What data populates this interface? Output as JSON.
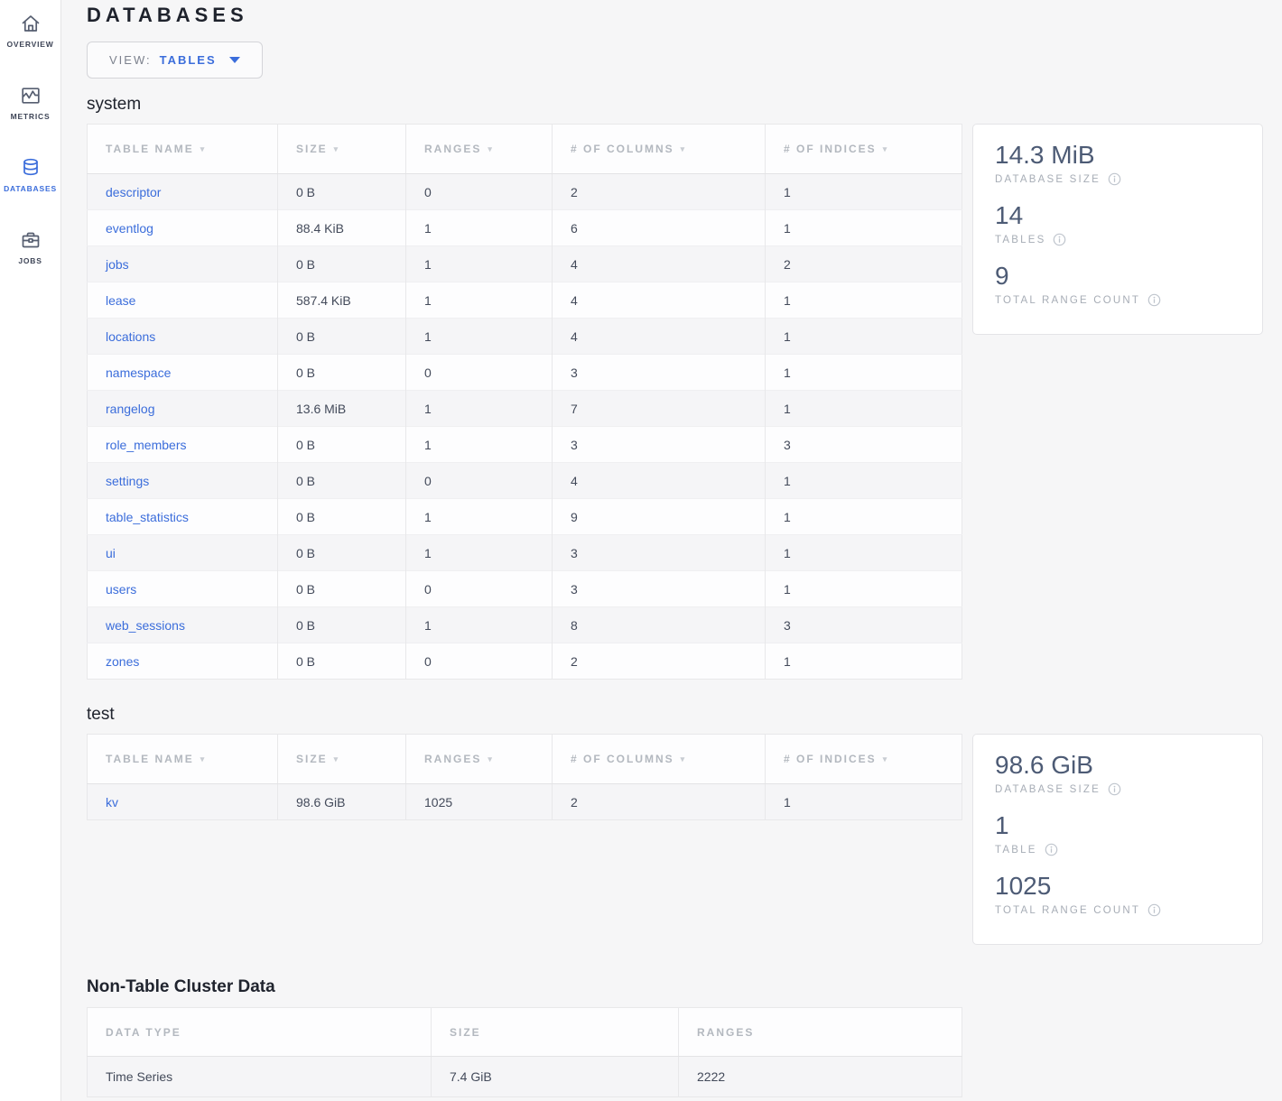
{
  "colors": {
    "accent": "#3b6ddb",
    "stat_value": "#4d5b75",
    "title": "#1e222c"
  },
  "sidebar": {
    "items": [
      {
        "label": "OVERVIEW",
        "icon": "home-icon",
        "active": false
      },
      {
        "label": "METRICS",
        "icon": "metrics-icon",
        "active": false
      },
      {
        "label": "DATABASES",
        "icon": "databases-icon",
        "active": true
      },
      {
        "label": "JOBS",
        "icon": "jobs-icon",
        "active": false
      }
    ]
  },
  "header": {
    "title": "DATABASES"
  },
  "view_selector": {
    "prefix": "VIEW:",
    "value": "TABLES"
  },
  "databases": [
    {
      "name": "system",
      "columns": [
        "TABLE NAME",
        "SIZE",
        "RANGES",
        "# OF COLUMNS",
        "# OF INDICES"
      ],
      "rows": [
        [
          "descriptor",
          "0 B",
          "0",
          "2",
          "1"
        ],
        [
          "eventlog",
          "88.4 KiB",
          "1",
          "6",
          "1"
        ],
        [
          "jobs",
          "0 B",
          "1",
          "4",
          "2"
        ],
        [
          "lease",
          "587.4 KiB",
          "1",
          "4",
          "1"
        ],
        [
          "locations",
          "0 B",
          "1",
          "4",
          "1"
        ],
        [
          "namespace",
          "0 B",
          "0",
          "3",
          "1"
        ],
        [
          "rangelog",
          "13.6 MiB",
          "1",
          "7",
          "1"
        ],
        [
          "role_members",
          "0 B",
          "1",
          "3",
          "3"
        ],
        [
          "settings",
          "0 B",
          "0",
          "4",
          "1"
        ],
        [
          "table_statistics",
          "0 B",
          "1",
          "9",
          "1"
        ],
        [
          "ui",
          "0 B",
          "1",
          "3",
          "1"
        ],
        [
          "users",
          "0 B",
          "0",
          "3",
          "1"
        ],
        [
          "web_sessions",
          "0 B",
          "1",
          "8",
          "3"
        ],
        [
          "zones",
          "0 B",
          "0",
          "2",
          "1"
        ]
      ],
      "summary": [
        {
          "value": "14.3 MiB",
          "label": "DATABASE SIZE"
        },
        {
          "value": "14",
          "label": "TABLES"
        },
        {
          "value": "9",
          "label": "TOTAL RANGE COUNT"
        }
      ]
    },
    {
      "name": "test",
      "columns": [
        "TABLE NAME",
        "SIZE",
        "RANGES",
        "# OF COLUMNS",
        "# OF INDICES"
      ],
      "rows": [
        [
          "kv",
          "98.6 GiB",
          "1025",
          "2",
          "1"
        ]
      ],
      "summary": [
        {
          "value": "98.6 GiB",
          "label": "DATABASE SIZE"
        },
        {
          "value": "1",
          "label": "TABLE"
        },
        {
          "value": "1025",
          "label": "TOTAL RANGE COUNT"
        }
      ]
    }
  ],
  "non_table": {
    "title": "Non-Table Cluster Data",
    "columns": [
      "DATA TYPE",
      "SIZE",
      "RANGES"
    ],
    "rows": [
      [
        "Time Series",
        "7.4 GiB",
        "2222"
      ]
    ]
  }
}
